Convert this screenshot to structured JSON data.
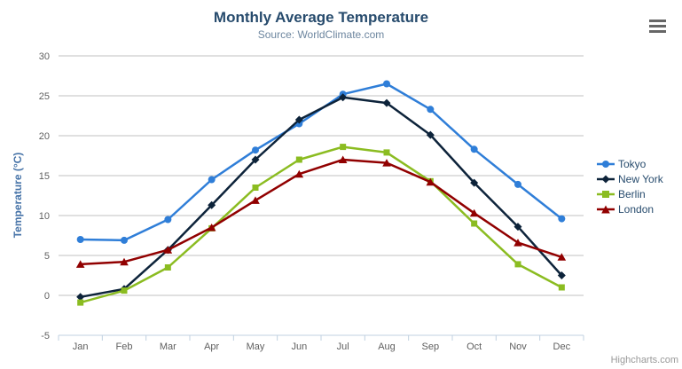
{
  "chart_data": {
    "type": "line",
    "title": "Monthly Average Temperature",
    "subtitle": "Source: WorldClimate.com",
    "categories": [
      "Jan",
      "Feb",
      "Mar",
      "Apr",
      "May",
      "Jun",
      "Jul",
      "Aug",
      "Sep",
      "Oct",
      "Nov",
      "Dec"
    ],
    "series": [
      {
        "name": "Tokyo",
        "color": "#2f7ed8",
        "marker": "circle",
        "values": [
          7.0,
          6.9,
          9.5,
          14.5,
          18.2,
          21.5,
          25.2,
          26.5,
          23.3,
          18.3,
          13.9,
          9.6
        ]
      },
      {
        "name": "New York",
        "color": "#0d233a",
        "marker": "diamond",
        "values": [
          -0.2,
          0.8,
          5.7,
          11.3,
          17.0,
          22.0,
          24.8,
          24.1,
          20.1,
          14.1,
          8.6,
          2.5
        ]
      },
      {
        "name": "Berlin",
        "color": "#8bbc21",
        "marker": "square",
        "values": [
          -0.9,
          0.6,
          3.5,
          8.4,
          13.5,
          17.0,
          18.6,
          17.9,
          14.3,
          9.0,
          3.9,
          1.0
        ]
      },
      {
        "name": "London",
        "color": "#910000",
        "marker": "triangle",
        "values": [
          3.9,
          4.2,
          5.7,
          8.5,
          11.9,
          15.2,
          17.0,
          16.6,
          14.2,
          10.3,
          6.6,
          4.8
        ]
      }
    ],
    "xlabel": "",
    "ylabel": "Temperature (°C)",
    "ylim": [
      -5,
      30
    ],
    "y_tick_interval": 5,
    "grid": "horizontal",
    "legend_position": "right"
  },
  "credits": {
    "label": "Highcharts.com"
  },
  "colors": {
    "title": "#274b6d",
    "subtitle": "#6d869f",
    "axis_title": "#4572a7",
    "tick_label": "#606060",
    "gridline": "#c0c0c0",
    "axis_line": "#c0d0e0",
    "legend_text": "#274b6d",
    "credits": "#999999",
    "context_button": "#666666"
  }
}
